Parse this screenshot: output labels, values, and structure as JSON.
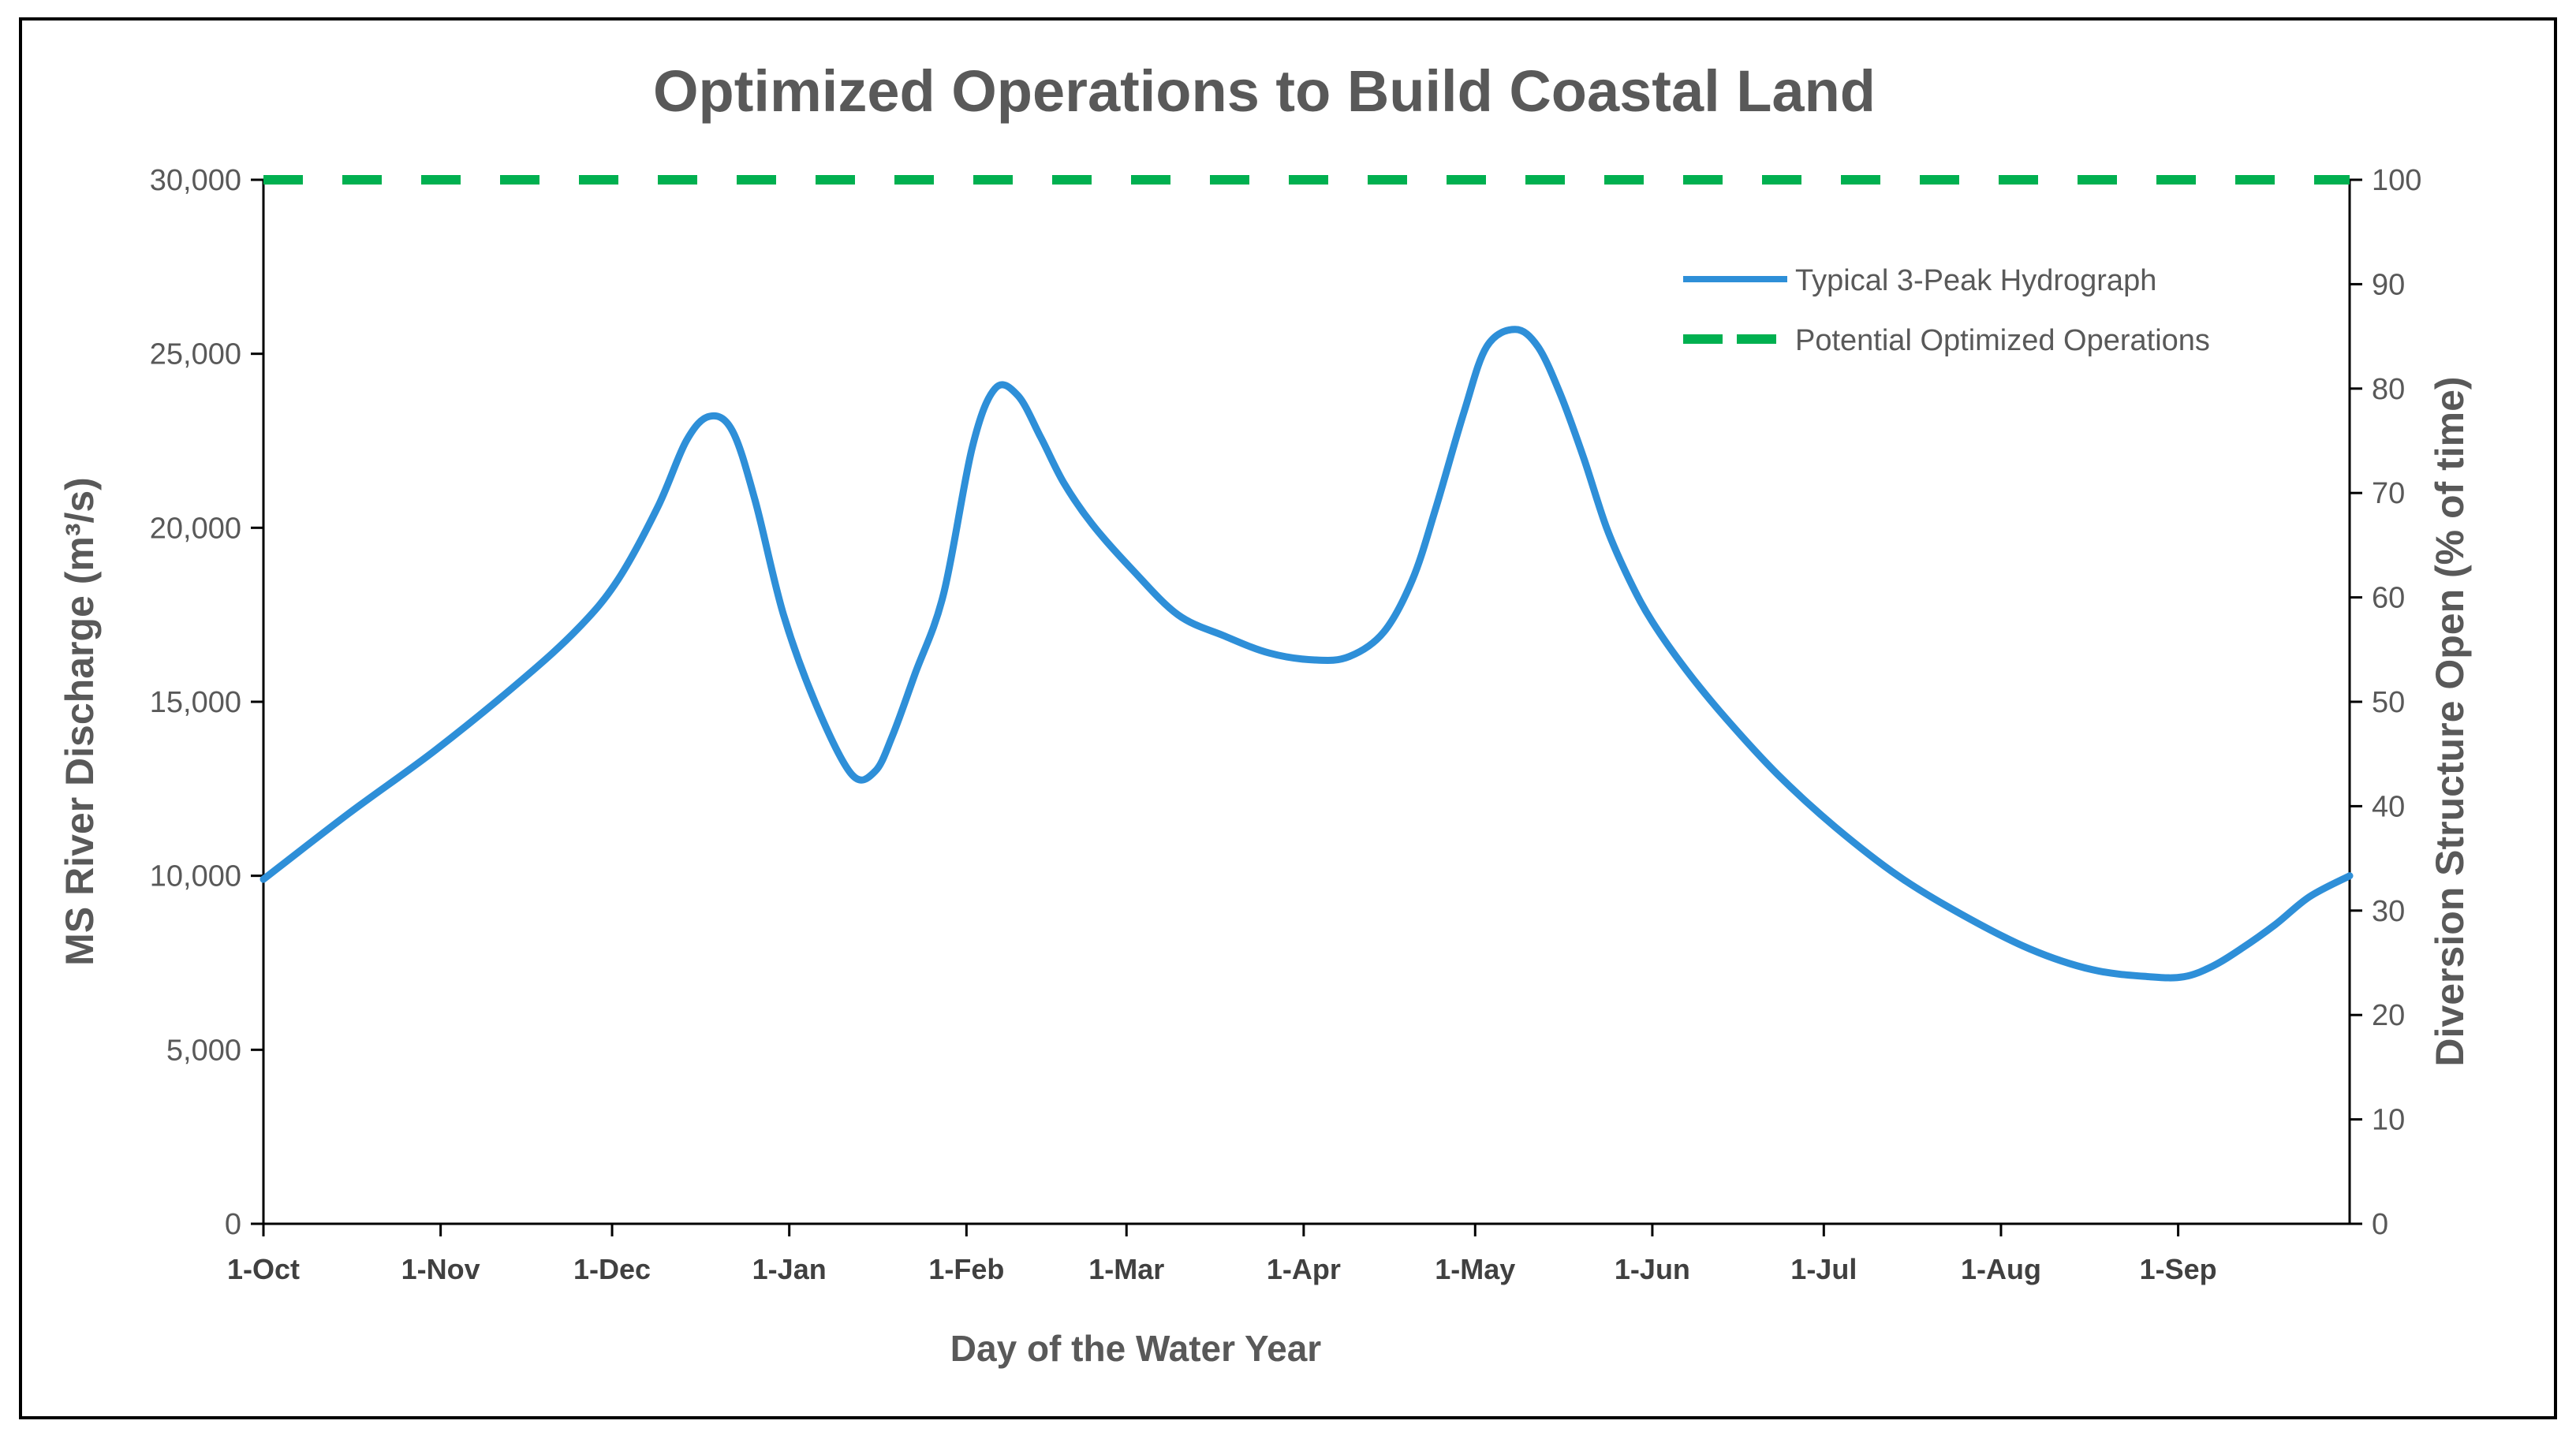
{
  "chart_data": {
    "type": "line",
    "title": "Optimized Operations to Build Coastal Land",
    "xlabel": "Day of the Water Year",
    "ylabel": "MS River Discharge (m³/s)",
    "y2label": "Diversion Structure Open (% of time)",
    "ylim": [
      0,
      30000
    ],
    "y2lim": [
      0,
      100
    ],
    "xlim": [
      0,
      365
    ],
    "grid": false,
    "legend_position": "top-right",
    "x_ticks": [
      {
        "label": "1-Oct",
        "day": 0
      },
      {
        "label": "1-Nov",
        "day": 31
      },
      {
        "label": "1-Dec",
        "day": 61
      },
      {
        "label": "1-Jan",
        "day": 92
      },
      {
        "label": "1-Feb",
        "day": 123
      },
      {
        "label": "1-Mar",
        "day": 151
      },
      {
        "label": "1-Apr",
        "day": 182
      },
      {
        "label": "1-May",
        "day": 212
      },
      {
        "label": "1-Jun",
        "day": 243
      },
      {
        "label": "1-Jul",
        "day": 273
      },
      {
        "label": "1-Aug",
        "day": 304
      },
      {
        "label": "1-Sep",
        "day": 335
      }
    ],
    "y_ticks": [
      0,
      5000,
      10000,
      15000,
      20000,
      25000,
      30000
    ],
    "y_tick_labels": [
      "0",
      "5,000",
      "10,000",
      "15,000",
      "20,000",
      "25,000",
      "30,000"
    ],
    "y2_ticks": [
      0,
      10,
      20,
      30,
      40,
      50,
      60,
      70,
      80,
      90,
      100
    ],
    "y2_tick_labels": [
      "0",
      "10",
      "20",
      "30",
      "40",
      "50",
      "60",
      "70",
      "80",
      "90",
      "100"
    ],
    "series": [
      {
        "name": "Typical 3-Peak Hydrograph",
        "axis": "left",
        "style": "solid",
        "color": "#2E8FD8",
        "x": [
          0,
          15,
          30,
          45,
          55,
          62,
          69,
          74,
          78,
          82,
          86,
          91,
          97,
          103,
          107,
          110,
          114,
          119,
          124,
          128,
          132,
          136,
          140,
          145,
          152,
          160,
          168,
          176,
          184,
          190,
          196,
          201,
          205,
          210,
          214,
          219,
          223,
          227,
          231,
          235,
          239,
          243,
          249,
          256,
          265,
          275,
          286,
          297,
          309,
          320,
          330,
          336,
          341,
          346,
          352,
          358,
          365
        ],
        "y": [
          9900,
          11800,
          13600,
          15600,
          17100,
          18500,
          20600,
          22500,
          23200,
          22800,
          20800,
          17500,
          14800,
          12900,
          13000,
          14000,
          15800,
          18100,
          22300,
          24000,
          23800,
          22600,
          21300,
          20100,
          18800,
          17500,
          16900,
          16400,
          16200,
          16300,
          17000,
          18500,
          20500,
          23300,
          25200,
          25700,
          25200,
          23800,
          22000,
          20000,
          18500,
          17300,
          15900,
          14500,
          12900,
          11400,
          10000,
          8900,
          7900,
          7300,
          7100,
          7100,
          7400,
          7900,
          8600,
          9400,
          10000
        ]
      },
      {
        "name": "Potential Optimized Operations",
        "axis": "right",
        "style": "dashed",
        "color": "#00B050",
        "x": [
          0,
          365
        ],
        "y": [
          100,
          100
        ]
      }
    ]
  }
}
